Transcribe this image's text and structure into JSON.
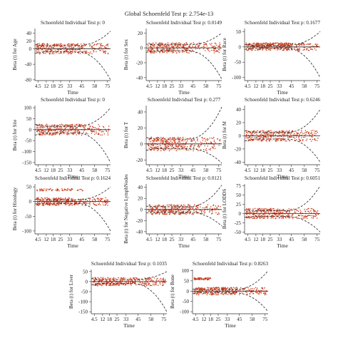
{
  "figure": {
    "global_title": "Global Schoenfeld Test p: 2.754e-13"
  },
  "chart_data": [
    {
      "type": "scatter",
      "title": "Schoenfeld Individual Test p: 0",
      "ylabel": "Beta (t) for Age",
      "xlabel": "Time",
      "xticks": [
        "4.5",
        "12",
        "18",
        "25",
        "33",
        "45",
        "58",
        "75"
      ],
      "yticks": [
        -80,
        -40,
        0,
        20,
        40
      ],
      "ylim": [
        -82,
        52
      ],
      "band_min": [
        -12,
        10
      ],
      "band_mid": [
        -8,
        8
      ],
      "band_end": [
        -80,
        45
      ],
      "bands": []
    },
    {
      "type": "scatter",
      "title": "Schoenfeld Individual Test p: 0.0149",
      "ylabel": "Beta (t) for Sex",
      "xlabel": "Time",
      "xticks": [
        "4.5",
        "12",
        "18",
        "25",
        "33",
        "45",
        "58",
        "75"
      ],
      "yticks": [
        -40,
        -20,
        0,
        20
      ],
      "ylim": [
        -44,
        26
      ],
      "band_min": [
        -6,
        5
      ],
      "band_mid": [
        -4,
        4
      ],
      "band_end": [
        -42,
        20
      ],
      "bands": []
    },
    {
      "type": "scatter",
      "title": "Schoenfeld Individual Test p: 0.1677",
      "ylabel": "Beta (t) for Race",
      "xlabel": "Time",
      "xticks": [
        "4.5",
        "12",
        "18",
        "25",
        "33",
        "45",
        "58",
        "75"
      ],
      "yticks": [
        -100,
        -50,
        0,
        50
      ],
      "ylim": [
        -110,
        60
      ],
      "band_min": [
        -8,
        8
      ],
      "band_mid": [
        -5,
        5
      ],
      "band_end": [
        -100,
        50
      ],
      "bands": [
        10
      ]
    },
    {
      "type": "scatter",
      "title": "Schoenfeld Individual Test p: 0",
      "ylabel": "Beta (t) for Site",
      "xlabel": "Time",
      "xticks": [
        "4.5",
        "12",
        "18",
        "25",
        "33",
        "45",
        "58",
        "75"
      ],
      "yticks": [
        -150,
        -100,
        -50,
        0,
        50,
        100
      ],
      "ylim": [
        -160,
        110
      ],
      "band_min": [
        -25,
        25
      ],
      "band_mid": [
        -15,
        15
      ],
      "band_end": [
        -150,
        100
      ],
      "bands": []
    },
    {
      "type": "scatter",
      "title": "Schoenfeld Individual Test p: 0.277",
      "ylabel": "Beta (t) for T",
      "xlabel": "Time",
      "xticks": [
        "4.5",
        "12",
        "18",
        "25",
        "33",
        "45",
        "58",
        "75"
      ],
      "yticks": [
        -20,
        0,
        20,
        40
      ],
      "ylim": [
        -26,
        48
      ],
      "band_min": [
        -8,
        8
      ],
      "band_mid": [
        -6,
        6
      ],
      "band_end": [
        -24,
        46
      ],
      "bands": []
    },
    {
      "type": "scatter",
      "title": "Schoenfeld Individual Test p: 0.6246",
      "ylabel": "Beta (t) for M",
      "xlabel": "Time",
      "xticks": [
        "4.5",
        "12",
        "18",
        "25",
        "33",
        "45",
        "58",
        "75"
      ],
      "yticks": [
        -40,
        -20,
        0,
        20,
        40
      ],
      "ylim": [
        -44,
        46
      ],
      "band_min": [
        -8,
        8
      ],
      "band_mid": [
        -5,
        5
      ],
      "band_end": [
        -40,
        40
      ],
      "bands": []
    },
    {
      "type": "scatter",
      "title": "Schoenfeld Individual Test p: 0.1624",
      "ylabel": "Beta (t) for Histology",
      "xlabel": "Time",
      "xticks": [
        "4.5",
        "12",
        "18",
        "25",
        "33",
        "45",
        "58",
        "75"
      ],
      "yticks": [
        -100,
        -50,
        0,
        50
      ],
      "ylim": [
        -110,
        60
      ],
      "band_min": [
        -8,
        8
      ],
      "band_mid": [
        -6,
        6
      ],
      "band_end": [
        -100,
        50
      ],
      "bands": [
        40
      ]
    },
    {
      "type": "scatter",
      "title": "Schoenfeld Individual Test p: 0.0121",
      "ylabel": "Beta (t) for Negative LymphNodes",
      "xlabel": "Time",
      "xticks": [
        "4.5",
        "12",
        "18",
        "25",
        "33",
        "45",
        "58",
        "75"
      ],
      "yticks": [
        -40,
        -20,
        0,
        20,
        40
      ],
      "ylim": [
        -44,
        46
      ],
      "band_min": [
        -6,
        6
      ],
      "band_mid": [
        -5,
        5
      ],
      "band_end": [
        -30,
        44
      ],
      "bands": []
    },
    {
      "type": "scatter",
      "title": "Schoenfeld Individual Test p: 0.6051",
      "ylabel": "Beta (t) for LODDS",
      "xlabel": "Time",
      "xticks": [
        "4.5",
        "12",
        "18",
        "25",
        "33",
        "45",
        "58",
        "75"
      ],
      "yticks": [
        -50,
        -25,
        0,
        25,
        50,
        75
      ],
      "ylim": [
        -55,
        80
      ],
      "band_min": [
        -10,
        10
      ],
      "band_mid": [
        -8,
        8
      ],
      "band_end": [
        -50,
        75
      ],
      "bands": []
    },
    {
      "type": "scatter",
      "title": "Schoenfeld Individual Test p: 0.1035",
      "ylabel": "Beta (t) for Liver",
      "xlabel": "Time",
      "xticks": [
        "4.5",
        "12",
        "18",
        "25",
        "33",
        "45",
        "58",
        "75"
      ],
      "yticks": [
        -150,
        -100,
        -50,
        0,
        50
      ],
      "ylim": [
        -160,
        60
      ],
      "band_min": [
        -15,
        15
      ],
      "band_mid": [
        -10,
        10
      ],
      "band_end": [
        -150,
        50
      ],
      "bands": []
    },
    {
      "type": "scatter",
      "title": "Schoenfeld Individual Test p: 0.8263",
      "ylabel": "Beta (t) for Bone",
      "xlabel": "Time",
      "xticks": [
        "4.5",
        "12",
        "18",
        "25",
        "33",
        "45",
        "58",
        "75"
      ],
      "yticks": [
        -100,
        -50,
        0,
        50,
        100
      ],
      "ylim": [
        -110,
        105
      ],
      "band_min": [
        -10,
        10
      ],
      "band_mid": [
        -8,
        8
      ],
      "band_end": [
        -100,
        100
      ],
      "bands": [
        60
      ]
    }
  ]
}
